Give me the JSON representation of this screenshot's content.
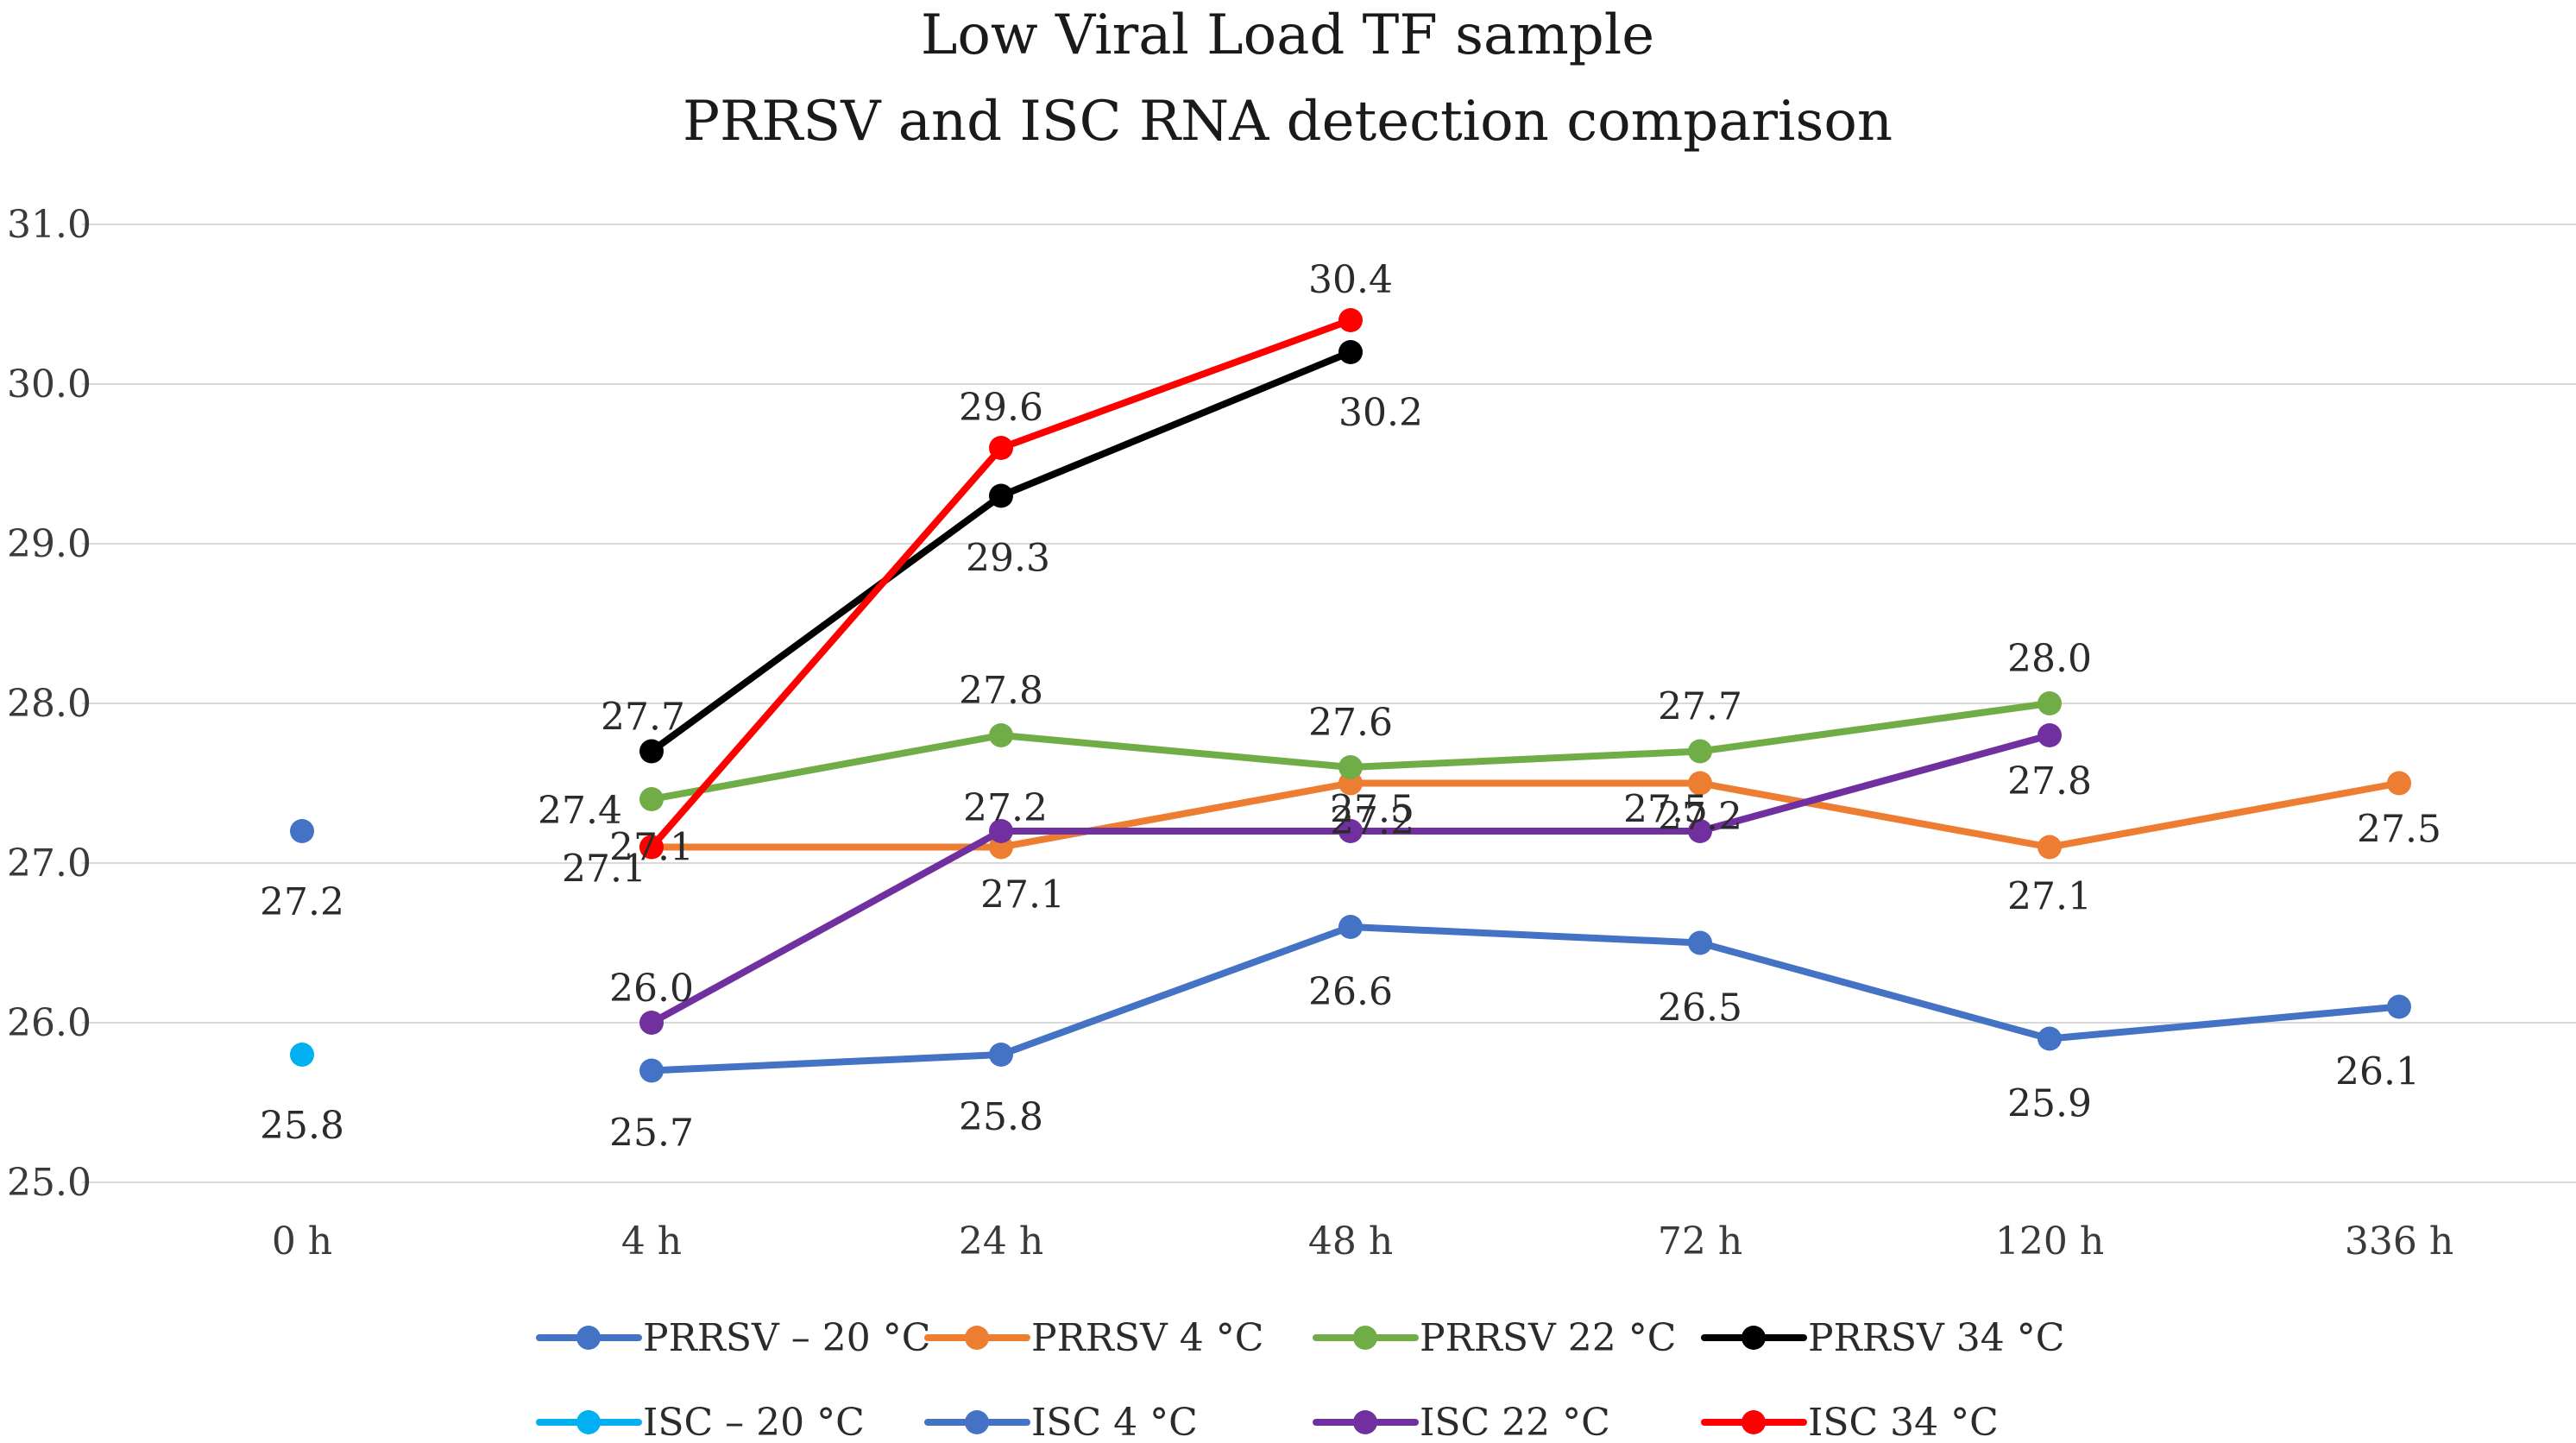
{
  "chart_data": {
    "type": "line",
    "title": [
      "Low Viral Load TF sample",
      "PRRSV  and ISC RNA detection comparison"
    ],
    "xlabel": "",
    "ylabel": "",
    "categories": [
      "0 h",
      "4 h",
      "24 h",
      "48 h",
      "72 h",
      "120 h",
      "336 h"
    ],
    "ylim": [
      25.0,
      31.0
    ],
    "yticks": [
      "25.0",
      "26.0",
      "27.0",
      "28.0",
      "29.0",
      "30.0",
      "31.0"
    ],
    "grid": true,
    "legend_position": "bottom",
    "series": [
      {
        "name": "PRRSV – 20 °C",
        "color": "#4472C4",
        "values": [
          27.2,
          null,
          null,
          null,
          null,
          null,
          null
        ]
      },
      {
        "name": "PRRSV 4 °C",
        "color": "#ED7D31",
        "values": [
          null,
          27.1,
          27.1,
          27.5,
          27.5,
          27.1,
          27.5
        ]
      },
      {
        "name": "PRRSV 22 °C",
        "color": "#70AD47",
        "values": [
          null,
          27.4,
          27.8,
          27.6,
          27.7,
          28.0,
          null
        ]
      },
      {
        "name": "PRRSV 34 °C",
        "color": "#000000",
        "values": [
          null,
          27.7,
          29.3,
          30.2,
          null,
          null,
          null
        ]
      },
      {
        "name": "ISC – 20 °C",
        "color": "#00B0F0",
        "values": [
          25.8,
          null,
          null,
          null,
          null,
          null,
          null
        ]
      },
      {
        "name": "ISC 4 °C",
        "color": "#4472C4",
        "values": [
          null,
          25.7,
          25.8,
          26.6,
          26.5,
          25.9,
          26.1
        ]
      },
      {
        "name": "ISC 22 °C",
        "color": "#7030A0",
        "values": [
          null,
          26.0,
          27.2,
          27.2,
          27.2,
          27.8,
          null
        ]
      },
      {
        "name": "ISC 34 °C",
        "color": "#FF0000",
        "values": [
          null,
          27.1,
          29.6,
          30.4,
          null,
          null,
          null
        ]
      }
    ]
  }
}
